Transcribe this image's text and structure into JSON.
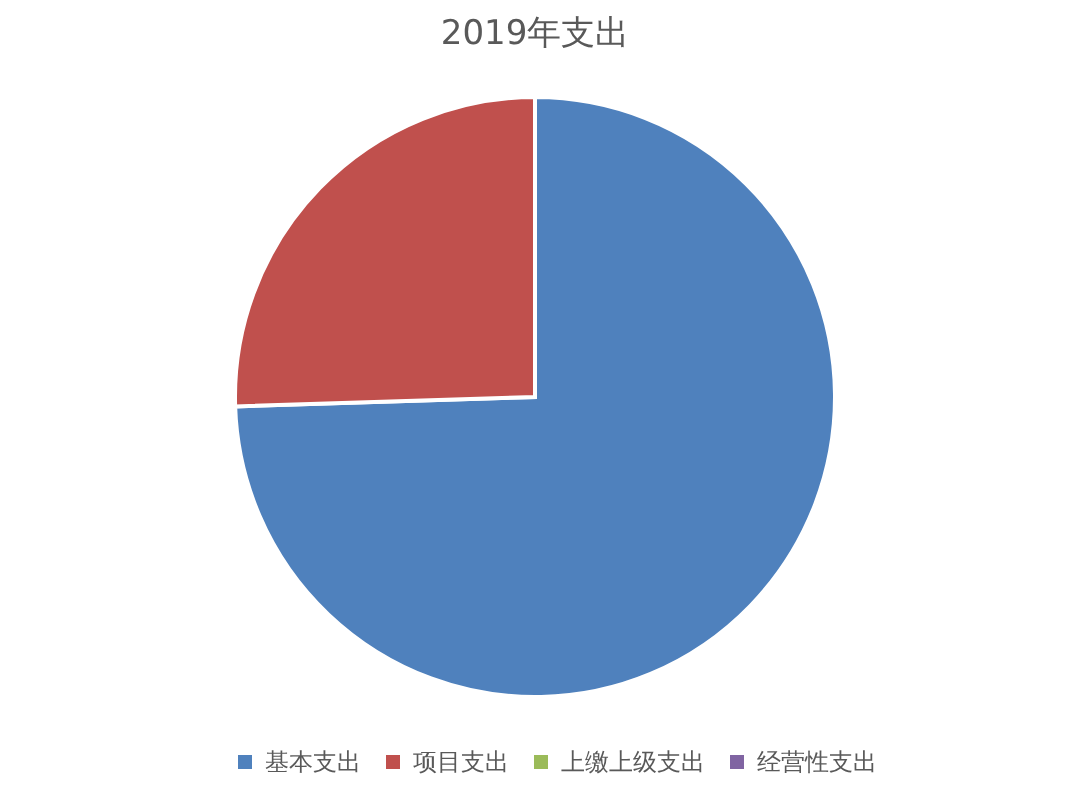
{
  "chart_data": {
    "type": "pie",
    "title": "2019年支出",
    "categories": [
      "基本支出",
      "项目支出",
      "上缴上级支出",
      "经营性支出"
    ],
    "values": [
      74.5,
      25.5,
      0,
      0
    ],
    "colors": [
      "#4f81bd",
      "#c0504d",
      "#9bbb59",
      "#8064a2"
    ],
    "legend": "bottom"
  }
}
